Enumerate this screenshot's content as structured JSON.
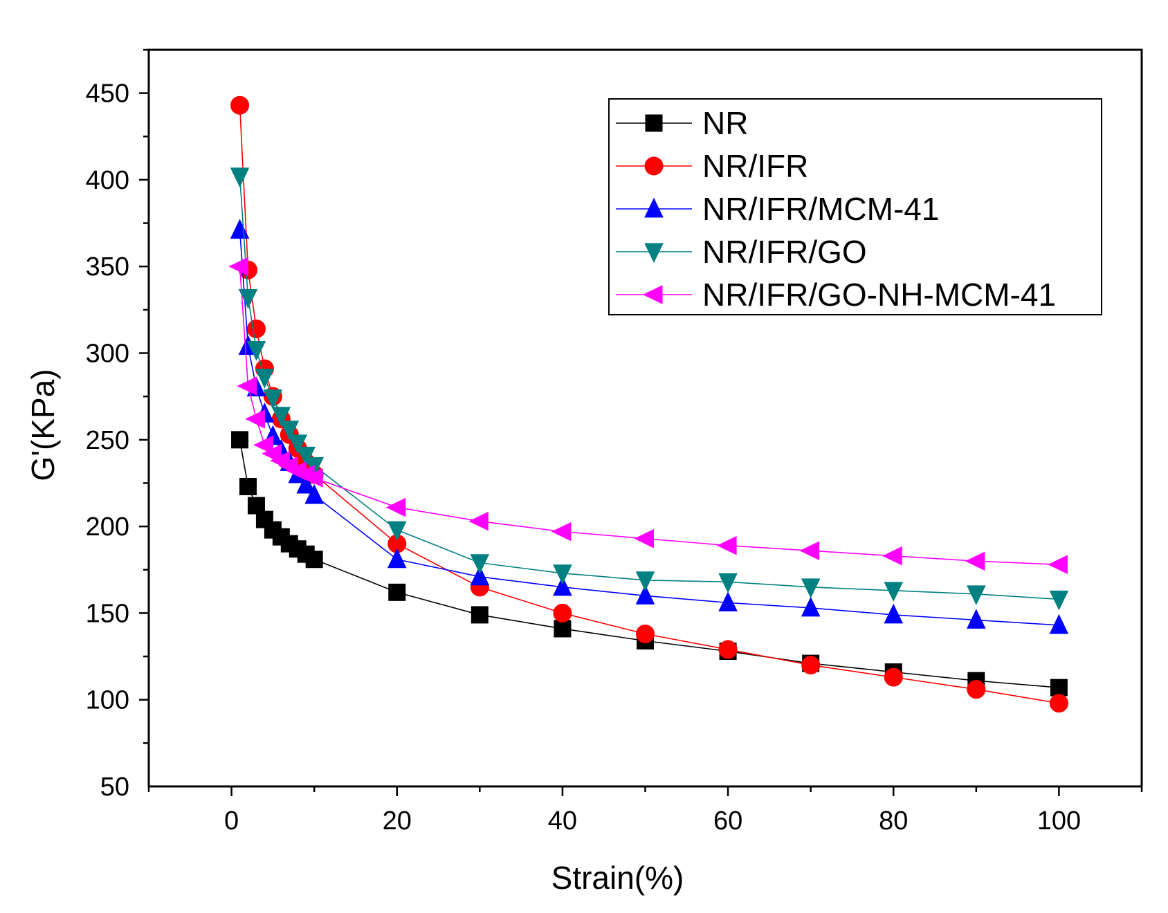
{
  "chart_data": {
    "type": "line",
    "title": "",
    "xlabel": "Strain(%)",
    "ylabel": "G'(KPa)",
    "xlim": [
      -10,
      110
    ],
    "ylim": [
      50,
      475
    ],
    "xticks": [
      0,
      20,
      40,
      60,
      80,
      100
    ],
    "xtick_labels": [
      "0",
      "20",
      "40",
      "60",
      "80",
      "100"
    ],
    "yticks": [
      50,
      100,
      150,
      200,
      250,
      300,
      350,
      400,
      450
    ],
    "ytick_labels": [
      "50",
      "100",
      "150",
      "200",
      "250",
      "300",
      "350",
      "400",
      "450"
    ],
    "grid": false,
    "legend_position": "top-right",
    "x": [
      1,
      2,
      3,
      4,
      5,
      6,
      7,
      8,
      9,
      10,
      20,
      30,
      40,
      50,
      60,
      70,
      80,
      90,
      100
    ],
    "series": [
      {
        "name": "NR",
        "color": "#000000",
        "marker": "square",
        "values": [
          250,
          223,
          212,
          204,
          198,
          194,
          190,
          187,
          184,
          181,
          162,
          149,
          141,
          134,
          128,
          121,
          116,
          111,
          107
        ]
      },
      {
        "name": "NR/IFR",
        "color": "#ff0000",
        "marker": "circle",
        "values": [
          443,
          348,
          314,
          291,
          275,
          262,
          253,
          245,
          237,
          230,
          190,
          165,
          150,
          138,
          129,
          120,
          113,
          106,
          98
        ]
      },
      {
        "name": "NR/IFR/MCM-41",
        "color": "#0000ff",
        "marker": "triangle-up",
        "values": [
          371,
          304,
          280,
          265,
          252,
          244,
          237,
          230,
          224,
          218,
          181,
          171,
          165,
          160,
          156,
          153,
          149,
          146,
          143
        ]
      },
      {
        "name": "NR/IFR/GO",
        "color": "#008080",
        "marker": "triangle-down",
        "values": [
          402,
          332,
          302,
          286,
          274,
          264,
          256,
          248,
          241,
          235,
          198,
          179,
          173,
          169,
          168,
          165,
          163,
          161,
          158
        ]
      },
      {
        "name": "NR/IFR/GO-NH-MCM-41",
        "color": "#ff00ff",
        "marker": "triangle-left",
        "values": [
          350,
          281,
          262,
          247,
          242,
          238,
          235,
          232,
          230,
          228,
          211,
          203,
          197,
          193,
          189,
          186,
          183,
          180,
          178
        ]
      }
    ]
  }
}
